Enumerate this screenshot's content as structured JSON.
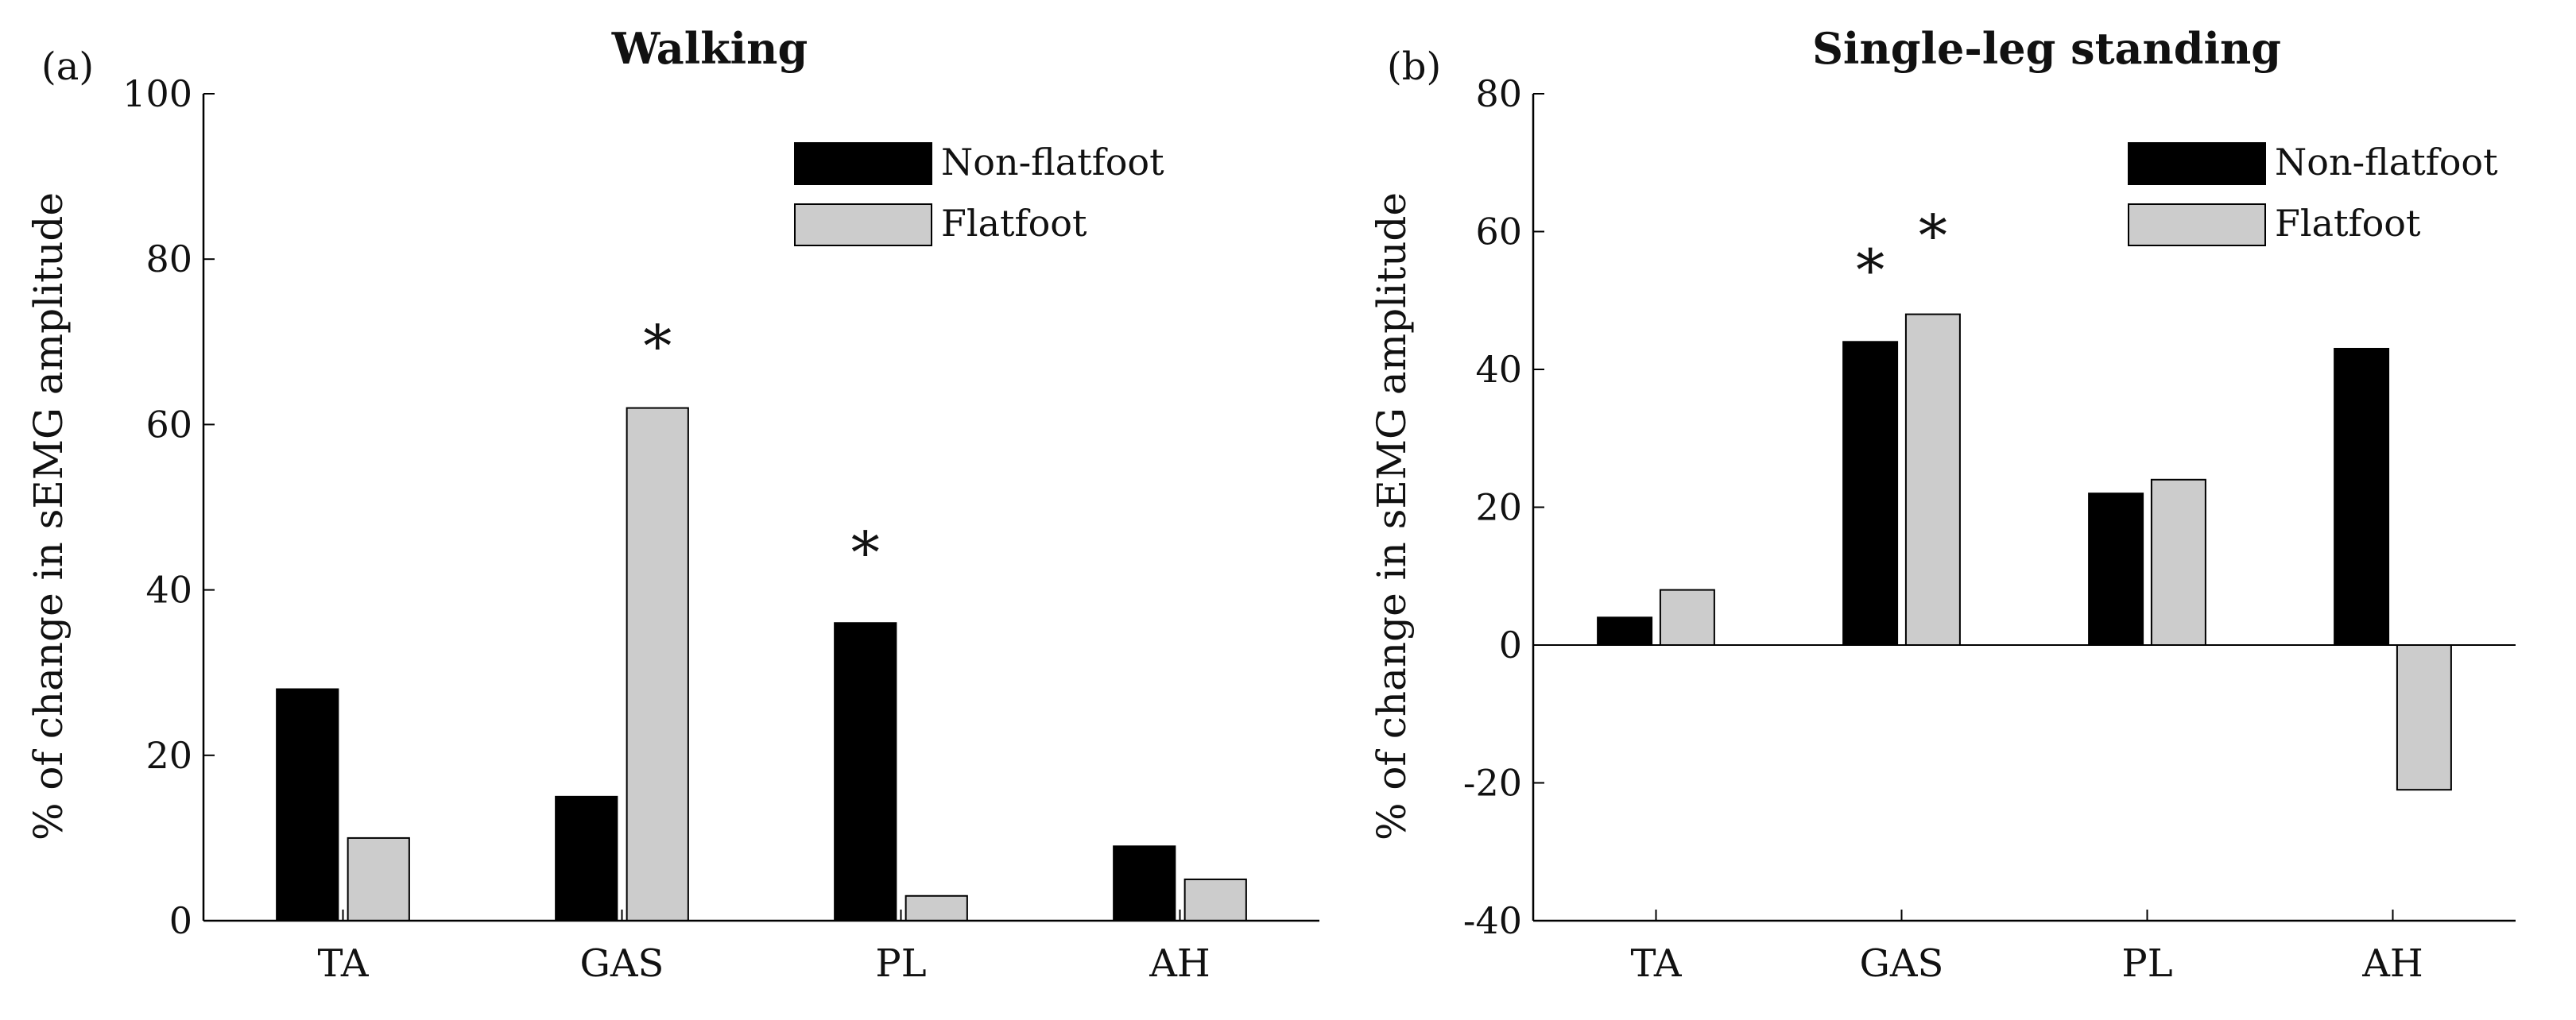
{
  "chart_data": [
    {
      "type": "bar",
      "panel_label": "(a)",
      "title": "Walking",
      "xlabel": "",
      "ylabel": "% of change in sEMG amplitude",
      "ylim": [
        0,
        100
      ],
      "yticks": [
        "0",
        "20",
        "40",
        "60",
        "80",
        "100"
      ],
      "ytick_values": [
        0,
        20,
        40,
        60,
        80,
        100
      ],
      "categories": [
        "TA",
        "GAS",
        "PL",
        "AH"
      ],
      "series": [
        {
          "name": "Non-flatfoot",
          "color": "#000000",
          "values": [
            28,
            15,
            36,
            9
          ]
        },
        {
          "name": "Flatfoot",
          "color": "#cccccc",
          "values": [
            10,
            62,
            3,
            5
          ]
        }
      ],
      "annotations": [
        {
          "text": "*",
          "category": "GAS",
          "series": "Flatfoot",
          "y": 70
        },
        {
          "text": "*",
          "category": "PL",
          "series": "Non-flatfoot",
          "y": 45
        }
      ],
      "legend_position": "top-right",
      "grid": false
    },
    {
      "type": "bar",
      "panel_label": "(b)",
      "title": "Single-leg standing",
      "xlabel": "",
      "ylabel": "% of change in sEMG amplitude",
      "ylim": [
        -40,
        80
      ],
      "yticks": [
        "-40",
        "-20",
        "0",
        "20",
        "40",
        "60",
        "80"
      ],
      "ytick_values": [
        -40,
        -20,
        0,
        20,
        40,
        60,
        80
      ],
      "categories": [
        "TA",
        "GAS",
        "PL",
        "AH"
      ],
      "series": [
        {
          "name": "Non-flatfoot",
          "color": "#000000",
          "values": [
            4,
            44,
            22,
            43
          ]
        },
        {
          "name": "Flatfoot",
          "color": "#cccccc",
          "values": [
            8,
            48,
            24,
            -21
          ]
        }
      ],
      "annotations": [
        {
          "text": "*",
          "category": "GAS",
          "series": "Non-flatfoot",
          "y": 55
        },
        {
          "text": "*",
          "category": "GAS",
          "series": "Flatfoot",
          "y": 60
        }
      ],
      "legend_position": "top-right",
      "grid": false
    }
  ]
}
